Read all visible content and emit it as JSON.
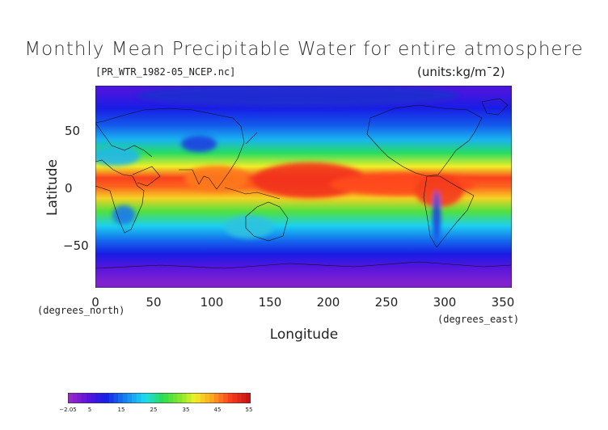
{
  "title": "Monthly Mean Precipitable Water for entire atmosphere",
  "subtitle": "[PR_WTR_1982-05_NCEP.nc]",
  "units": "(units:kg/m¯2)",
  "axes": {
    "xlabel": "Longitude",
    "ylabel": "Latitude",
    "x_unit": "(degrees_east)",
    "y_unit": "(degrees_north)",
    "xticks": [
      "0",
      "50",
      "100",
      "150",
      "200",
      "250",
      "300",
      "350"
    ],
    "yticks": [
      "50",
      "0",
      "−50"
    ]
  },
  "colorbar": {
    "labels": [
      "−2.05",
      "5",
      "15",
      "25",
      "35",
      "45",
      "55"
    ],
    "min": -2.05,
    "max": 55
  },
  "chart_data": {
    "type": "heatmap",
    "title": "Monthly Mean Precipitable Water for entire atmosphere",
    "xlabel": "Longitude",
    "ylabel": "Latitude",
    "xlim": [
      0,
      357.5
    ],
    "ylim": [
      -90,
      90
    ],
    "lat_bands": [
      {
        "lat": 85,
        "value": 5
      },
      {
        "lat": 70,
        "value": 9
      },
      {
        "lat": 55,
        "value": 13
      },
      {
        "lat": 42,
        "value": 19
      },
      {
        "lat": 30,
        "value": 27
      },
      {
        "lat": 18,
        "value": 38
      },
      {
        "lat": 8,
        "value": 49
      },
      {
        "lat": 0,
        "value": 47
      },
      {
        "lat": -10,
        "value": 40
      },
      {
        "lat": -22,
        "value": 30
      },
      {
        "lat": -35,
        "value": 21
      },
      {
        "lat": -48,
        "value": 14
      },
      {
        "lat": -60,
        "value": 9
      },
      {
        "lat": -72,
        "value": 4
      },
      {
        "lat": -85,
        "value": 0
      }
    ]
  }
}
